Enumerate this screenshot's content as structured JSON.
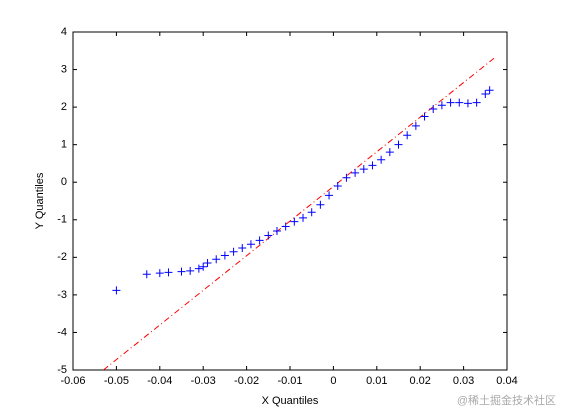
{
  "chart_data": {
    "type": "scatter",
    "xlabel": "X Quantiles",
    "ylabel": "Y Quantiles",
    "xlim": [
      -0.06,
      0.04
    ],
    "xticks": [
      -0.06,
      -0.05,
      -0.04,
      -0.03,
      -0.02,
      -0.01,
      0,
      0.01,
      0.02,
      0.03,
      0.04
    ],
    "ylim": [
      -5,
      4
    ],
    "yticks": [
      -5,
      -4,
      -3,
      -2,
      -1,
      0,
      1,
      2,
      3,
      4
    ],
    "series": [
      {
        "color": "#0000ff",
        "x": [
          -0.05,
          -0.043,
          -0.04,
          -0.038,
          -0.035,
          -0.033,
          -0.031,
          -0.03,
          -0.029,
          -0.027,
          -0.025,
          -0.023,
          -0.021,
          -0.019,
          -0.017,
          -0.015,
          -0.013,
          -0.011,
          -0.009,
          -0.007,
          -0.005,
          -0.003,
          -0.001,
          0.001,
          0.003,
          0.005,
          0.007,
          0.009,
          0.011,
          0.013,
          0.015,
          0.017,
          0.019,
          0.021,
          0.023,
          0.025,
          0.027,
          0.029,
          0.031,
          0.033,
          0.035,
          0.036
        ],
        "values": [
          -2.88,
          -2.45,
          -2.42,
          -2.4,
          -2.38,
          -2.36,
          -2.3,
          -2.25,
          -2.15,
          -2.05,
          -1.95,
          -1.85,
          -1.75,
          -1.65,
          -1.55,
          -1.42,
          -1.3,
          -1.18,
          -1.05,
          -0.95,
          -0.8,
          -0.6,
          -0.35,
          -0.1,
          0.12,
          0.25,
          0.35,
          0.45,
          0.6,
          0.8,
          1.0,
          1.25,
          1.5,
          1.75,
          1.95,
          2.05,
          2.12,
          2.12,
          2.1,
          2.12,
          2.35,
          2.45
        ]
      }
    ],
    "reference_line": {
      "color": "#ff0000",
      "x": [
        -0.053,
        0.037
      ],
      "values": [
        -5,
        3.3
      ]
    },
    "watermark": "@稀土掘金技术社区"
  }
}
